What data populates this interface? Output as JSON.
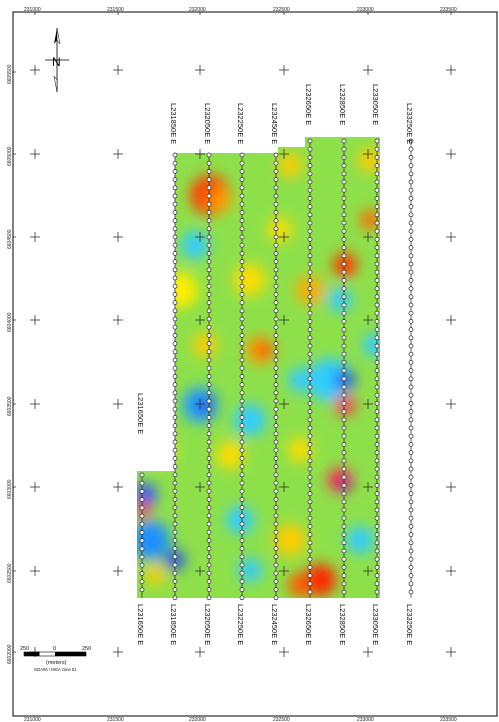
{
  "map": {
    "easting_ticks": [
      "231000",
      "231500",
      "232000",
      "232500",
      "233000",
      "233500"
    ],
    "northing_ticks": [
      "6605500",
      "6605000",
      "6604500",
      "6604000",
      "6603500",
      "6603000",
      "6602500",
      "6602000"
    ],
    "north_arrow_label": "N",
    "lines_top": [
      "L231650E E",
      "L231850E E",
      "L232050E E",
      "L232250E E",
      "L232450E E",
      "L232650E E",
      "L232850E E",
      "L233050E E",
      "L233250E E"
    ],
    "lines_bottom": [
      "L231650E E",
      "L231850E E",
      "L232050E E",
      "L232250E E",
      "L232450E E",
      "L232650E E",
      "L232850E E",
      "L233050E E",
      "L233250E E"
    ],
    "scalebar": {
      "left": "250",
      "middle": "0",
      "right": "250",
      "units": "(meters)",
      "projection": "GDA94 / MGA zone 51"
    }
  }
}
